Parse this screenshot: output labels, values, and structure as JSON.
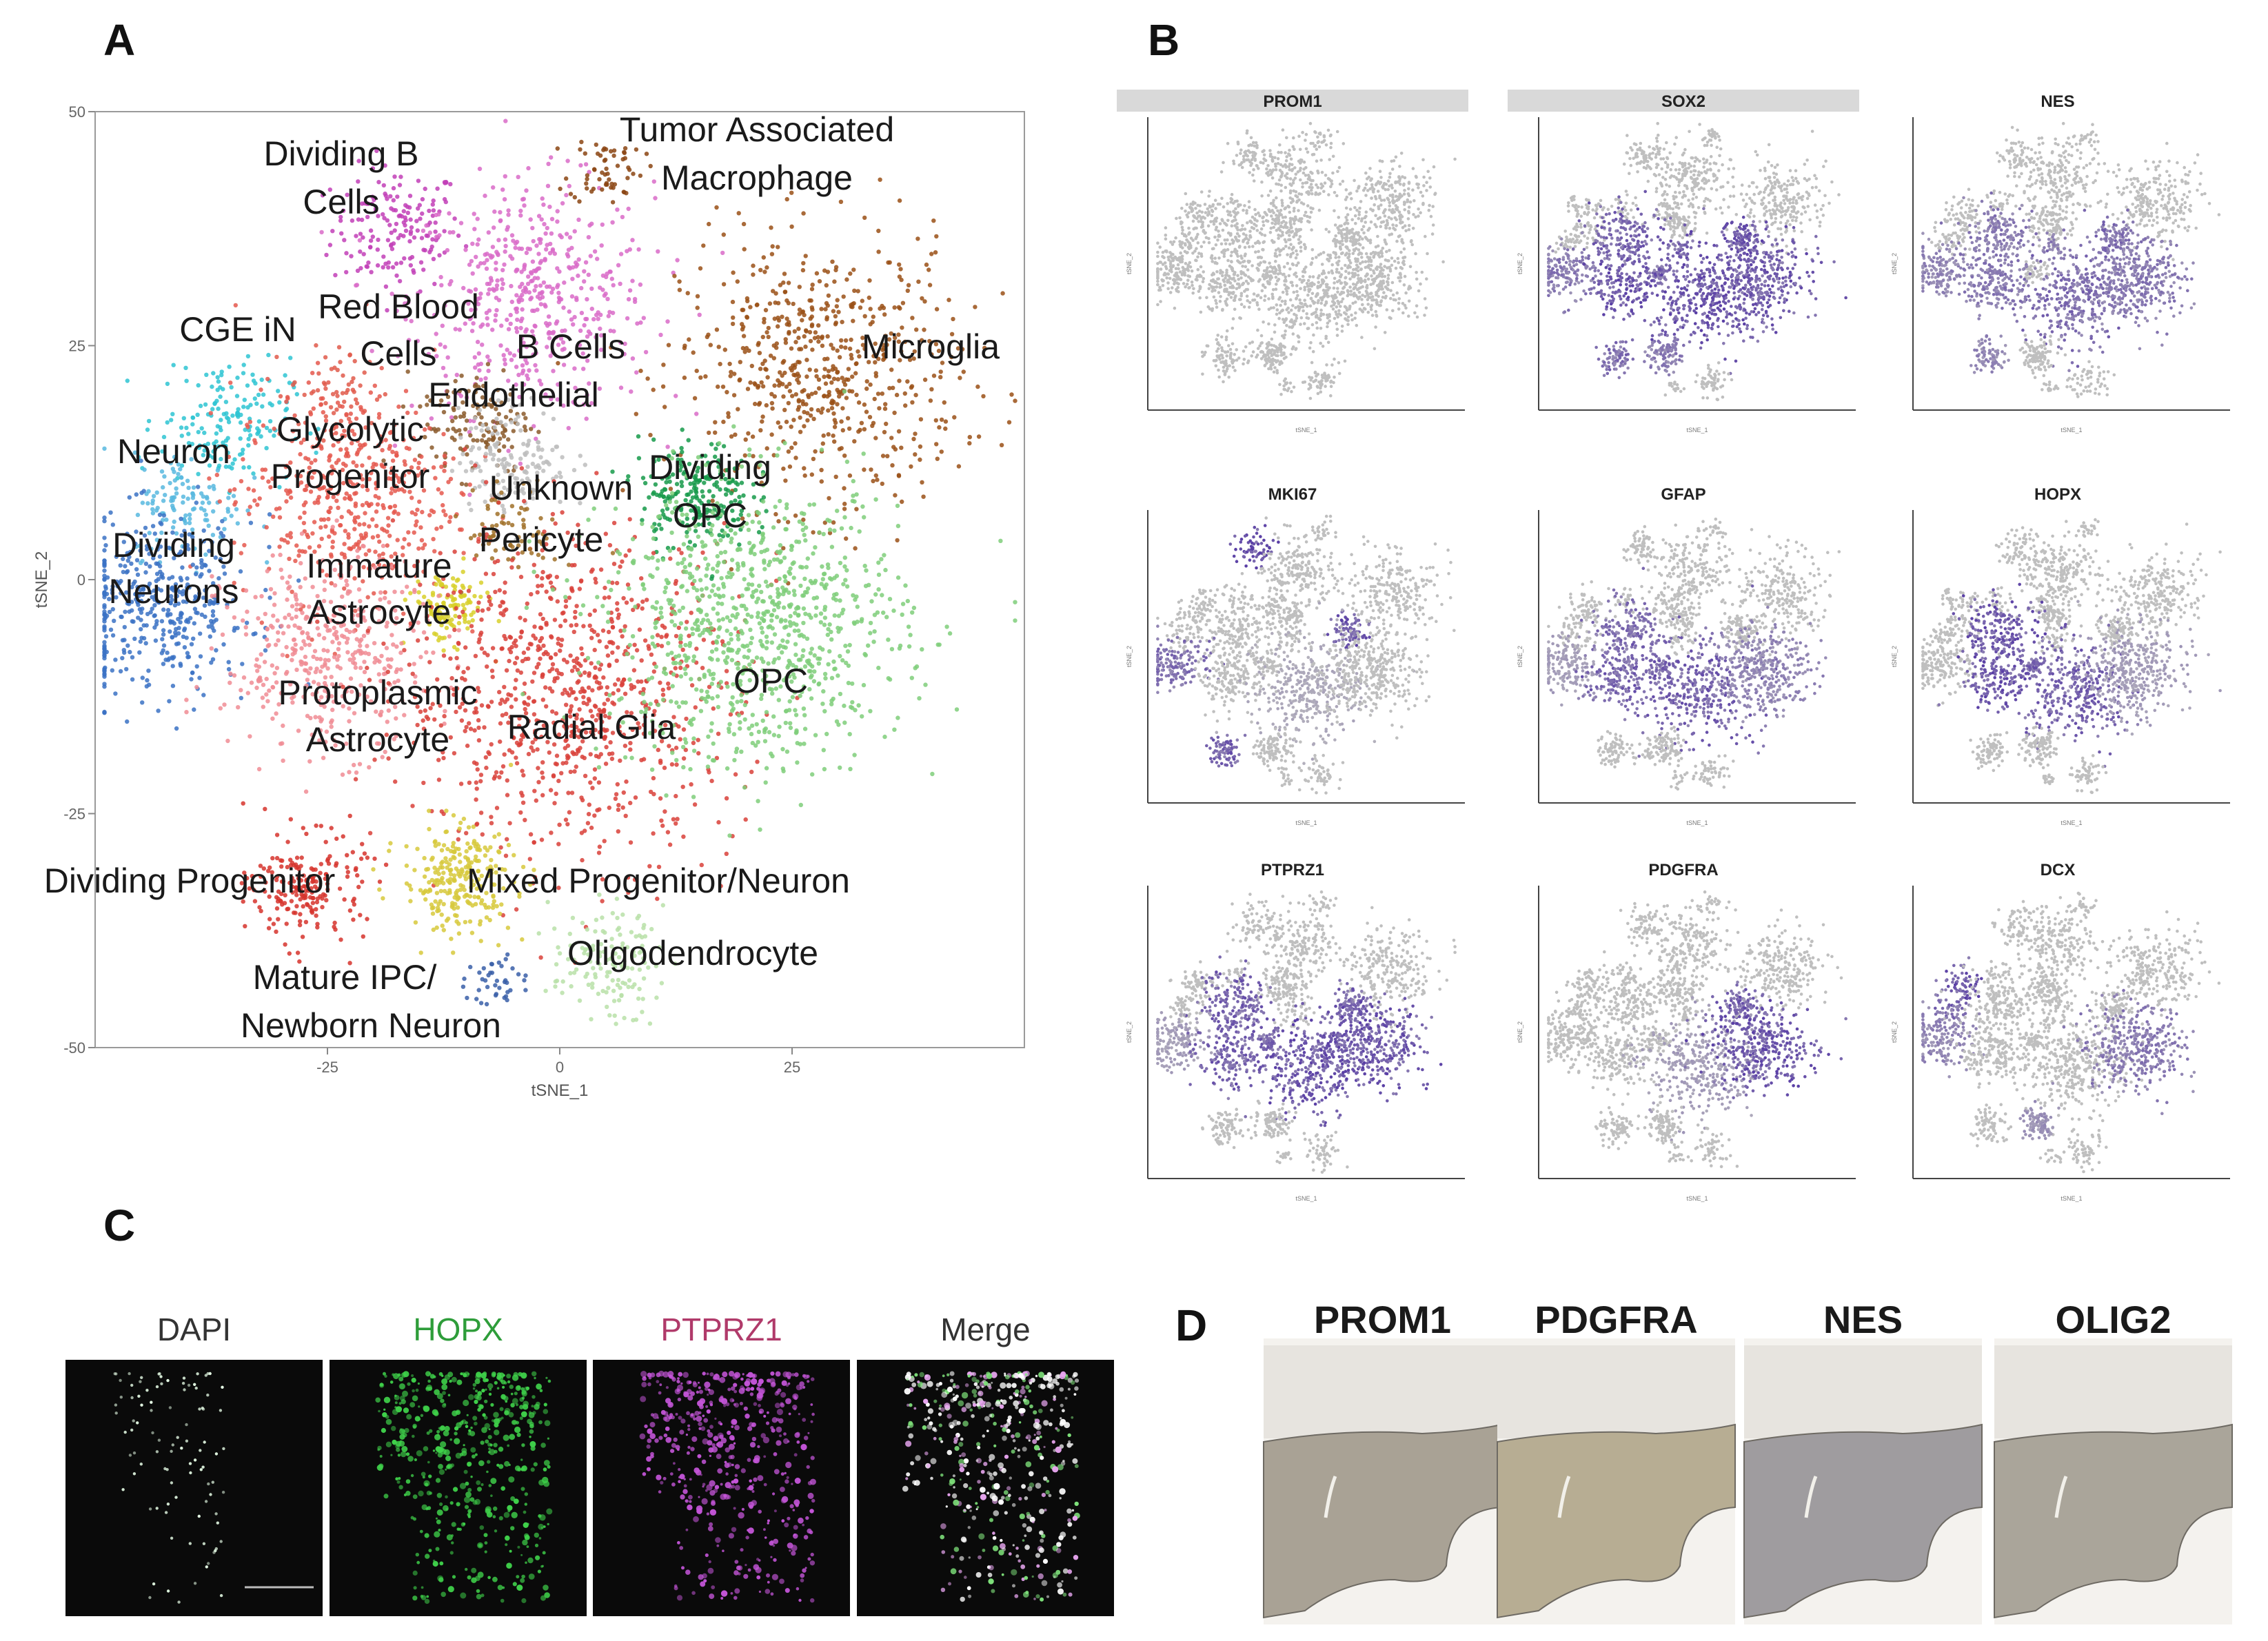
{
  "panels": {
    "a": "A",
    "b": "B",
    "c": "C",
    "d": "D"
  },
  "chart_data": [
    {
      "type": "scatter",
      "panel": "A",
      "xlabel": "tSNE_1",
      "ylabel": "tSNE_2",
      "xlim": [
        -50,
        50
      ],
      "ylim": [
        -50,
        50
      ],
      "xticks": [
        -25,
        0,
        25
      ],
      "yticks": [
        50,
        25,
        0,
        -25,
        -50
      ],
      "grid": false,
      "clusters": [
        {
          "label": "Dividing B Cells",
          "color": "#c23fb7",
          "x": -17.5,
          "y": 37.5,
          "spread": 3.5,
          "n": 170
        },
        {
          "label": "B Cells",
          "color": "#d96bc8",
          "x": -3,
          "y": 30,
          "spread": 6.5,
          "n": 520
        },
        {
          "label": "Tumor Associated Macrophage",
          "color": "#8b4513",
          "x": 5,
          "y": 44,
          "spread": 2,
          "n": 60
        },
        {
          "label": "Microglia",
          "color": "#9a5016",
          "x": 28,
          "y": 22,
          "spread": 7.5,
          "n": 640
        },
        {
          "label": "CGE iN",
          "color": "#2ec4d2",
          "x": -36,
          "y": 17,
          "spread": 3.5,
          "n": 170
        },
        {
          "label": "Red Blood Cells",
          "color": "#e05a4b",
          "x": -24,
          "y": 20,
          "spread": 2.5,
          "n": 60
        },
        {
          "label": "Endothelial",
          "color": "#8b5a2b",
          "x": -9,
          "y": 17,
          "spread": 3,
          "n": 130
        },
        {
          "label": "Neuron",
          "color": "#58b8df",
          "x": -40,
          "y": 8,
          "spread": 3,
          "n": 120
        },
        {
          "label": "Glycolytic Progenitor",
          "color": "#e5584e",
          "x": -23,
          "y": 9,
          "spread": 6,
          "n": 480
        },
        {
          "label": "Unknown",
          "color": "#bdbdbd",
          "x": -5,
          "y": 13,
          "spread": 3,
          "n": 150
        },
        {
          "label": "Dividing OPC",
          "color": "#169a4a",
          "x": 14.5,
          "y": 9,
          "spread": 3,
          "n": 220
        },
        {
          "label": "Dividing Neurons",
          "color": "#3b72c4",
          "x": -43,
          "y": -3,
          "spread": 5,
          "n": 420
        },
        {
          "label": "Immature Astrocyte",
          "color": "#d8d02a",
          "x": -12,
          "y": -3,
          "spread": 2,
          "n": 120
        },
        {
          "label": "Pericyte",
          "color": "#a07028",
          "x": -5,
          "y": 5,
          "spread": 2.5,
          "n": 70
        },
        {
          "label": "Protoplasmic Astrocyte",
          "color": "#f08c94",
          "x": -25,
          "y": -8,
          "spread": 5.5,
          "n": 420
        },
        {
          "label": "Radial Glia",
          "color": "#d9413a",
          "x": 1,
          "y": -12,
          "spread": 9,
          "n": 900
        },
        {
          "label": "OPC",
          "color": "#7fce7a",
          "x": 21,
          "y": -5,
          "spread": 8,
          "n": 950
        },
        {
          "label": "Dividing Progenitor",
          "color": "#d6342d",
          "x": -27,
          "y": -33,
          "spread": 3,
          "n": 200
        },
        {
          "label": "Mixed Progenitor/Neuron",
          "color": "#d7c93c",
          "x": -11,
          "y": -32,
          "spread": 3,
          "n": 260
        },
        {
          "label": "Oligodendrocyte",
          "color": "#b8e0a8",
          "x": 5,
          "y": -41,
          "spread": 3,
          "n": 140
        },
        {
          "label": "Mature IPC/ Newborn Neuron",
          "color": "#3a5fa8",
          "x": -7,
          "y": -43,
          "spread": 1.5,
          "n": 40
        }
      ]
    },
    {
      "type": "scatter",
      "panel": "B",
      "description_source": "feature plots",
      "xlabel": "tSNE_1",
      "ylabel": "tSNE_2",
      "genes": [
        "PROM1",
        "SOX2",
        "NES",
        "MKI67",
        "GFAP",
        "HOPX",
        "PTPRZ1",
        "PDGFRA",
        "DCX"
      ],
      "low_color": "#bfbfbf",
      "high_color": "#5a3fa6"
    }
  ],
  "panel_c": {
    "titles": [
      {
        "label": "DAPI",
        "color": "#333333"
      },
      {
        "label": "HOPX",
        "color": "#2e9d3a"
      },
      {
        "label": "PTPRZ1",
        "color": "#b03a6a"
      },
      {
        "label": "Merge",
        "color": "#333333"
      }
    ]
  },
  "panel_d": {
    "titles": [
      "PROM1",
      "PDGFRA",
      "NES",
      "OLIG2"
    ]
  }
}
